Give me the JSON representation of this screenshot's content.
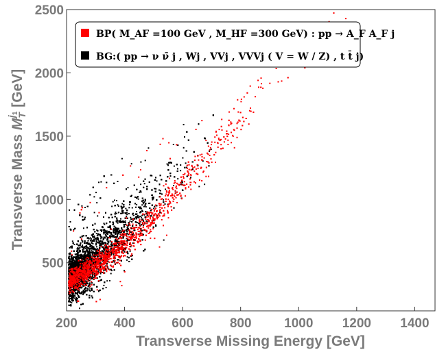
{
  "chart_data": {
    "type": "scatter",
    "xlabel": "Transverse Missing Energy [GeV]",
    "ylabel_main": "Transverse Mass ",
    "ylabel_sym": "M",
    "ylabel_sub": "T",
    "ylabel_sup": "j",
    "ylabel_supsub": "1",
    "ylabel_unit": " [GeV]",
    "xlim": [
      200,
      1470
    ],
    "ylim": [
      120,
      2500
    ],
    "xticks": [
      "200",
      "400",
      "600",
      "800",
      "1000",
      "1200",
      "1400"
    ],
    "yticks": [
      "500",
      "1000",
      "1500",
      "2000",
      "2500"
    ],
    "grid": false,
    "legend_placement": "top-left",
    "legend": [
      {
        "label": "BP( M_AF =100 GeV , M_HF =300 GeV) : pp → A_F A_F j",
        "color": "#ff0000"
      },
      {
        "label": "BG:( pp → ν ν̄ j , Wj , VVj , VVVj ( V = W / Z) , t t̄ j)",
        "color": "#000000"
      }
    ],
    "series": [
      {
        "color": "#ff0000",
        "trend": [
          [
            210,
            360
          ],
          [
            300,
            480
          ],
          [
            400,
            650
          ],
          [
            500,
            880
          ],
          [
            600,
            1150
          ],
          [
            700,
            1400
          ],
          [
            800,
            1680
          ],
          [
            900,
            1940
          ],
          [
            1000,
            2150
          ],
          [
            1100,
            2330
          ],
          [
            1200,
            2460
          ]
        ]
      },
      {
        "color": "#000000",
        "trend": [
          [
            210,
            380
          ],
          [
            300,
            560
          ],
          [
            400,
            780
          ],
          [
            500,
            1000
          ],
          [
            600,
            1250
          ],
          [
            700,
            1500
          ],
          [
            800,
            1760
          ],
          [
            900,
            2000
          ]
        ]
      }
    ]
  }
}
